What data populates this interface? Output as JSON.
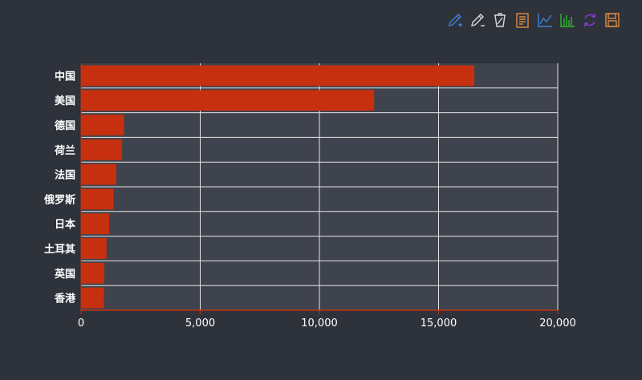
{
  "toolbar": [
    {
      "name": "mark-icon",
      "color": "#3f7fd8"
    },
    {
      "name": "mark-undo-icon",
      "color": "#d8d8d8"
    },
    {
      "name": "mark-clear-icon",
      "color": "#d8d8d8"
    },
    {
      "name": "data-view-icon",
      "color": "#e08a3c"
    },
    {
      "name": "line-chart-icon",
      "color": "#3f7fd8"
    },
    {
      "name": "bar-chart-icon",
      "color": "#2fb52f"
    },
    {
      "name": "restore-icon",
      "color": "#8a3fd8"
    },
    {
      "name": "save-image-icon",
      "color": "#e08a3c"
    }
  ],
  "chart_data": {
    "type": "bar",
    "orientation": "horizontal",
    "categories": [
      "中国",
      "美国",
      "德国",
      "荷兰",
      "法国",
      "俄罗斯",
      "日本",
      "土耳其",
      "英国",
      "香港"
    ],
    "values": [
      16500,
      12300,
      1800,
      1720,
      1480,
      1360,
      1180,
      1070,
      970,
      960
    ],
    "xlim": [
      0,
      20000
    ],
    "xticks": [
      0,
      5000,
      10000,
      15000,
      20000
    ],
    "xtick_labels": [
      "0",
      "5,000",
      "10,000",
      "15,000",
      "20,000"
    ],
    "grid": true,
    "bar_color": "#c7300e",
    "background_color": "#3f434d",
    "axis_color": "#c7300e"
  }
}
